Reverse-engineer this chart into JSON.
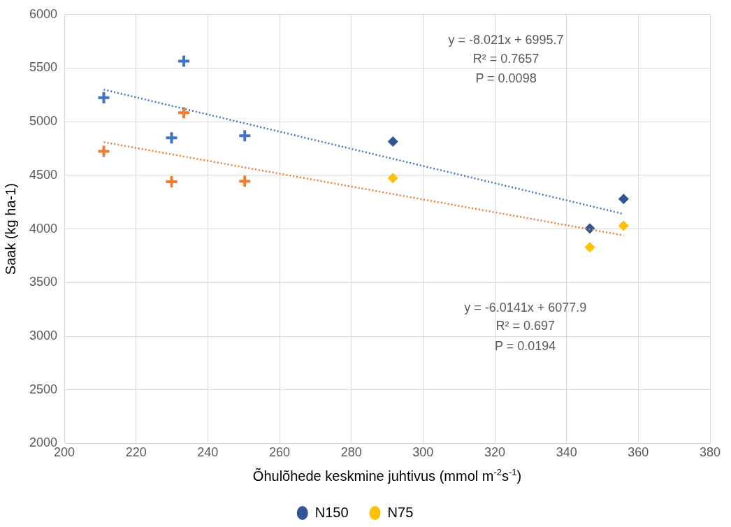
{
  "chart_data": {
    "type": "scatter",
    "xlabel": "Õhulõhede keskmine juhtivus (mmol m$^{-2}$s$^{-1}$)",
    "ylabel": "Saak (kg ha-1)",
    "xlim": [
      200,
      380
    ],
    "xticks": [
      200,
      220,
      240,
      260,
      280,
      300,
      320,
      340,
      360,
      380
    ],
    "ylim": [
      2000,
      6000
    ],
    "yticks": [
      2000,
      2500,
      3000,
      3500,
      4000,
      4500,
      5000,
      5500,
      6000
    ],
    "grid": true,
    "legend": "bottom",
    "series": [
      {
        "color": "#4472c4",
        "marker": "cross",
        "x": [
          211,
          233.3,
          229.9,
          250.3
        ],
        "values": [
          5225,
          5565,
          4850,
          4870
        ]
      },
      {
        "color": "#ed7d31",
        "marker": "cross",
        "x": [
          211,
          233.3,
          229.9,
          250.3
        ],
        "values": [
          4725,
          5085,
          4440,
          4445
        ]
      },
      {
        "name": "N150",
        "color": "#2f5597",
        "marker": "diamond",
        "x": [
          291.6,
          346.5,
          355.9
        ],
        "values": [
          4815,
          4005,
          4280
        ]
      },
      {
        "name": "N75",
        "color": "#ffc000",
        "marker": "diamond",
        "x": [
          291.6,
          346.5,
          355.9
        ],
        "values": [
          4475,
          3830,
          4030
        ]
      },
      {
        "type": "line",
        "color": "#4472c4",
        "line_style": "dotted",
        "marker": "none",
        "x": [
          211,
          355.9
        ],
        "values": [
          5300,
          4140
        ]
      },
      {
        "type": "line",
        "color": "#ed7d31",
        "line_style": "dotted",
        "marker": "none",
        "x": [
          211,
          355.9
        ],
        "values": [
          4810,
          3940
        ]
      }
    ],
    "annotations": [
      "y = -8.021x + 6995.7",
      "R² = 0.7657",
      "P = 0.0098",
      "y = -6.0141x + 6077.9",
      "R² = 0.697",
      "P = 0.0194"
    ]
  }
}
